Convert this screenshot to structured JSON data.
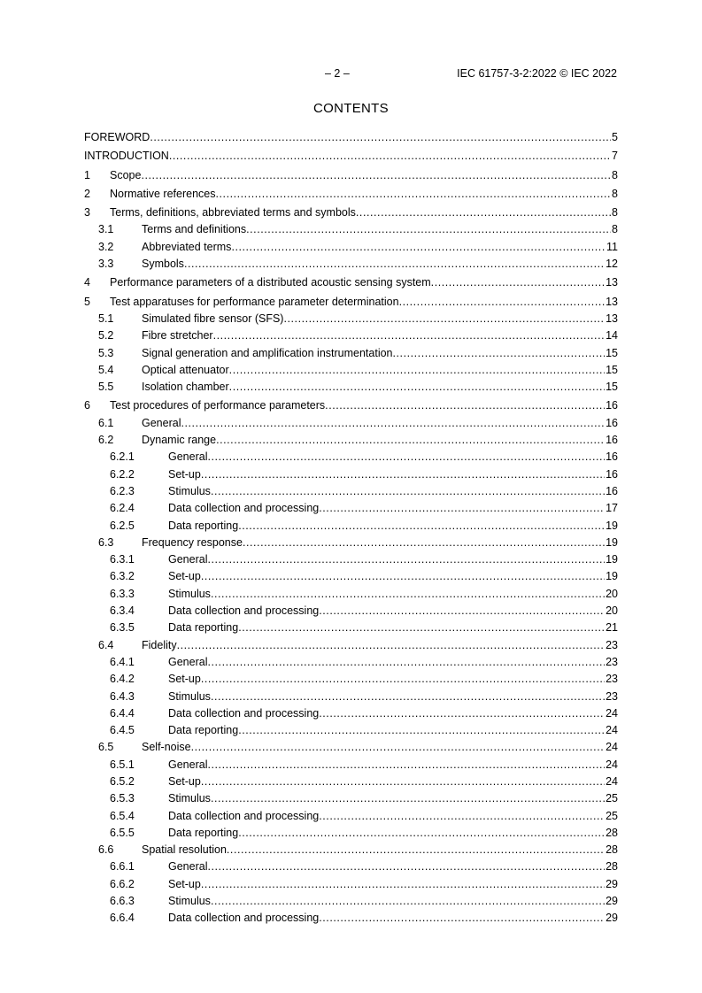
{
  "header": {
    "page_number": "– 2 –",
    "document_id": "IEC 61757-3-2:2022 © IEC 2022"
  },
  "title": "CONTENTS",
  "toc": [
    {
      "level": 1,
      "num": "",
      "title": "FOREWORD",
      "page": "5"
    },
    {
      "level": 1,
      "num": "",
      "title": "INTRODUCTION",
      "page": "7"
    },
    {
      "level": 1,
      "num": "1",
      "title": "Scope",
      "page": "8"
    },
    {
      "level": 1,
      "num": "2",
      "title": "Normative references",
      "page": "8"
    },
    {
      "level": 1,
      "num": "3",
      "title": "Terms, definitions, abbreviated terms and symbols",
      "page": "8"
    },
    {
      "level": 2,
      "num": "3.1",
      "title": "Terms and definitions",
      "page": "8"
    },
    {
      "level": 2,
      "num": "3.2",
      "title": "Abbreviated terms",
      "page": "11"
    },
    {
      "level": 2,
      "num": "3.3",
      "title": "Symbols",
      "page": "12"
    },
    {
      "level": 1,
      "num": "4",
      "title": "Performance parameters of a distributed acoustic sensing system",
      "page": "13"
    },
    {
      "level": 1,
      "num": "5",
      "title": "Test apparatuses for performance parameter determination",
      "page": "13"
    },
    {
      "level": 2,
      "num": "5.1",
      "title": "Simulated fibre sensor (SFS)",
      "page": "13"
    },
    {
      "level": 2,
      "num": "5.2",
      "title": "Fibre stretcher",
      "page": "14"
    },
    {
      "level": 2,
      "num": "5.3",
      "title": "Signal generation and amplification instrumentation",
      "page": "15"
    },
    {
      "level": 2,
      "num": "5.4",
      "title": "Optical attenuator",
      "page": "15"
    },
    {
      "level": 2,
      "num": "5.5",
      "title": "Isolation chamber",
      "page": "15"
    },
    {
      "level": 1,
      "num": "6",
      "title": "Test procedures of performance parameters",
      "page": "16"
    },
    {
      "level": 2,
      "num": "6.1",
      "title": "General",
      "page": "16"
    },
    {
      "level": 2,
      "num": "6.2",
      "title": "Dynamic range",
      "page": "16"
    },
    {
      "level": 3,
      "num": "6.2.1",
      "title": "General",
      "page": "16"
    },
    {
      "level": 3,
      "num": "6.2.2",
      "title": "Set-up",
      "page": "16"
    },
    {
      "level": 3,
      "num": "6.2.3",
      "title": "Stimulus",
      "page": "16"
    },
    {
      "level": 3,
      "num": "6.2.4",
      "title": "Data collection and processing",
      "page": "17"
    },
    {
      "level": 3,
      "num": "6.2.5",
      "title": "Data reporting",
      "page": "19"
    },
    {
      "level": 2,
      "num": "6.3",
      "title": "Frequency response",
      "page": "19"
    },
    {
      "level": 3,
      "num": "6.3.1",
      "title": "General",
      "page": "19"
    },
    {
      "level": 3,
      "num": "6.3.2",
      "title": "Set-up",
      "page": "19"
    },
    {
      "level": 3,
      "num": "6.3.3",
      "title": "Stimulus",
      "page": "20"
    },
    {
      "level": 3,
      "num": "6.3.4",
      "title": "Data collection and processing",
      "page": "20"
    },
    {
      "level": 3,
      "num": "6.3.5",
      "title": "Data reporting",
      "page": "21"
    },
    {
      "level": 2,
      "num": "6.4",
      "title": "Fidelity",
      "page": "23"
    },
    {
      "level": 3,
      "num": "6.4.1",
      "title": "General",
      "page": "23"
    },
    {
      "level": 3,
      "num": "6.4.2",
      "title": "Set-up",
      "page": "23"
    },
    {
      "level": 3,
      "num": "6.4.3",
      "title": "Stimulus",
      "page": "23"
    },
    {
      "level": 3,
      "num": "6.4.4",
      "title": "Data collection and processing",
      "page": "24"
    },
    {
      "level": 3,
      "num": "6.4.5",
      "title": "Data reporting",
      "page": "24"
    },
    {
      "level": 2,
      "num": "6.5",
      "title": "Self-noise",
      "page": "24"
    },
    {
      "level": 3,
      "num": "6.5.1",
      "title": "General",
      "page": "24"
    },
    {
      "level": 3,
      "num": "6.5.2",
      "title": "Set-up",
      "page": "24"
    },
    {
      "level": 3,
      "num": "6.5.3",
      "title": "Stimulus",
      "page": "25"
    },
    {
      "level": 3,
      "num": "6.5.4",
      "title": "Data collection and processing",
      "page": "25"
    },
    {
      "level": 3,
      "num": "6.5.5",
      "title": "Data reporting",
      "page": "28"
    },
    {
      "level": 2,
      "num": "6.6",
      "title": "Spatial resolution",
      "page": "28"
    },
    {
      "level": 3,
      "num": "6.6.1",
      "title": "General",
      "page": "28"
    },
    {
      "level": 3,
      "num": "6.6.2",
      "title": "Set-up",
      "page": "29"
    },
    {
      "level": 3,
      "num": "6.6.3",
      "title": "Stimulus",
      "page": "29"
    },
    {
      "level": 3,
      "num": "6.6.4",
      "title": "Data collection and processing",
      "page": "29"
    }
  ]
}
